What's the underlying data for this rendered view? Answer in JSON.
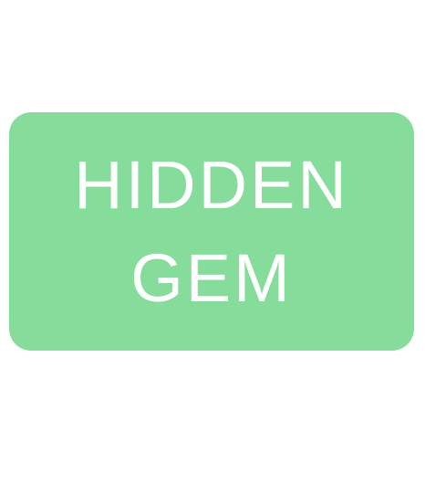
{
  "badge": {
    "lines": [
      "HIDDEN",
      "GEM"
    ],
    "background_color": "#86dd9b",
    "text_color": "#ffffff"
  }
}
